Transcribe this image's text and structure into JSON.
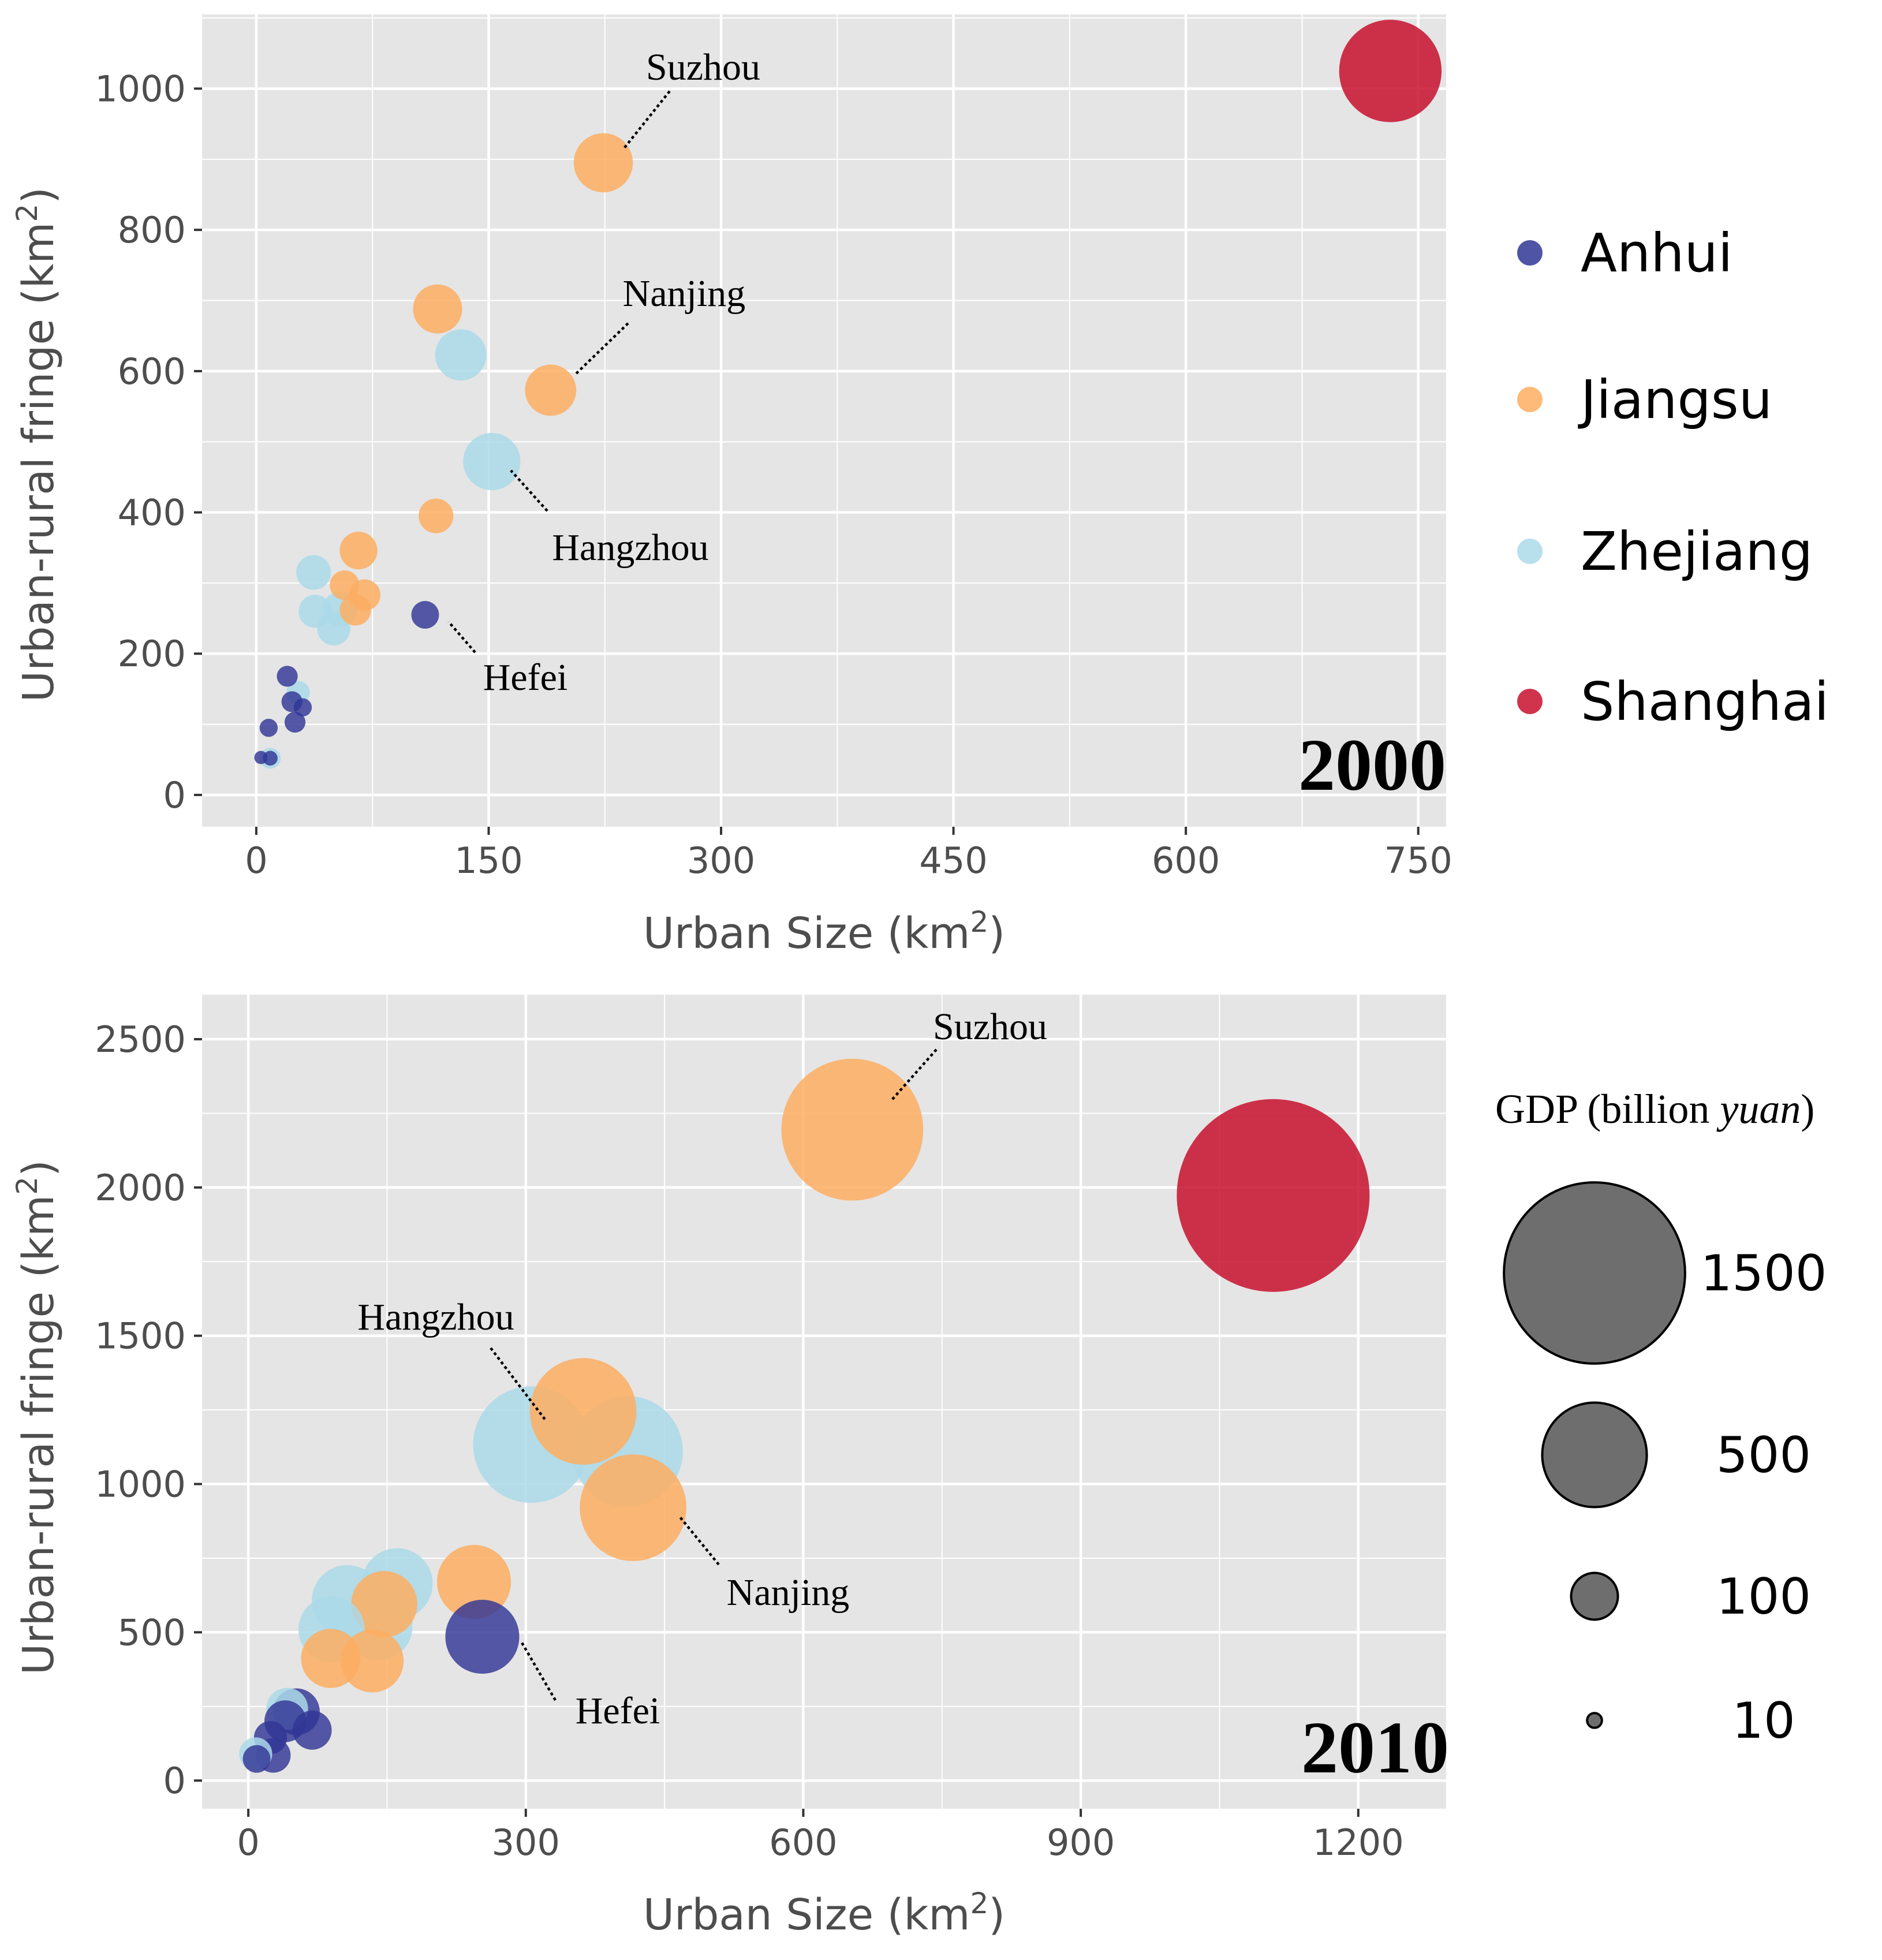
{
  "colors": {
    "Anhui": "#313695",
    "Jiangsu": "#fdae61",
    "Zhejiang": "#abd9e9",
    "Shanghai": "#c8102e",
    "panel_bg": "#e5e5e5",
    "grid": "#ffffff",
    "size_key_fill": "#6e6e6e"
  },
  "legend": {
    "provinces": [
      "Anhui",
      "Jiangsu",
      "Zhejiang",
      "Shanghai"
    ],
    "size_title": "GDP (billion ",
    "size_title_italic": "yuan",
    "size_title_end": ")",
    "size_keys": [
      {
        "value": 1500,
        "label": "1500"
      },
      {
        "value": 500,
        "label": "500"
      },
      {
        "value": 100,
        "label": "100"
      },
      {
        "value": 10,
        "label": "10"
      }
    ]
  },
  "chart_data": [
    {
      "type": "scatter",
      "panel_label": "2000",
      "xlabel": "Urban Size (km",
      "xlabel_sup": "2",
      "xlabel_end": ")",
      "ylabel": "Urban-rural fringe (km",
      "ylabel_sup": "2",
      "ylabel_end": ")",
      "xlim": [
        -35,
        768
      ],
      "ylim": [
        -45,
        1105
      ],
      "xticks": [
        0,
        150,
        300,
        450,
        600,
        750
      ],
      "xtick_labels": [
        "0",
        "150",
        "300",
        "450",
        "600",
        "750"
      ],
      "yticks": [
        0,
        200,
        400,
        600,
        800,
        1000
      ],
      "ytick_labels": [
        "0",
        "200",
        "400",
        "600",
        "800",
        "1000"
      ],
      "points": [
        {
          "province": "Shanghai",
          "x": 732,
          "y": 1025,
          "gdp": 480
        },
        {
          "province": "Jiangsu",
          "x": 224,
          "y": 895,
          "gdp": 160
        },
        {
          "province": "Jiangsu",
          "x": 117,
          "y": 688,
          "gdp": 110
        },
        {
          "province": "Zhejiang",
          "x": 132,
          "y": 623,
          "gdp": 120
        },
        {
          "province": "Jiangsu",
          "x": 190,
          "y": 573,
          "gdp": 120
        },
        {
          "province": "Zhejiang",
          "x": 152,
          "y": 472,
          "gdp": 150
        },
        {
          "province": "Jiangsu",
          "x": 116,
          "y": 395,
          "gdp": 55
        },
        {
          "province": "Jiangsu",
          "x": 66,
          "y": 346,
          "gdp": 65
        },
        {
          "province": "Zhejiang",
          "x": 37,
          "y": 315,
          "gdp": 55
        },
        {
          "province": "Jiangsu",
          "x": 57,
          "y": 297,
          "gdp": 40
        },
        {
          "province": "Jiangsu",
          "x": 70,
          "y": 283,
          "gdp": 45
        },
        {
          "province": "Jiangsu",
          "x": 64,
          "y": 262,
          "gdp": 45
        },
        {
          "province": "Zhejiang",
          "x": 38,
          "y": 260,
          "gdp": 50
        },
        {
          "province": "Zhejiang",
          "x": 54,
          "y": 263,
          "gdp": 55
        },
        {
          "province": "Zhejiang",
          "x": 50,
          "y": 235,
          "gdp": 50
        },
        {
          "province": "Anhui",
          "x": 109,
          "y": 255,
          "gdp": 35
        },
        {
          "province": "Anhui",
          "x": 20,
          "y": 168,
          "gdp": 20
        },
        {
          "province": "Zhejiang",
          "x": 27,
          "y": 145,
          "gdp": 25
        },
        {
          "province": "Anhui",
          "x": 23,
          "y": 132,
          "gdp": 20
        },
        {
          "province": "Anhui",
          "x": 30,
          "y": 124,
          "gdp": 15
        },
        {
          "province": "Anhui",
          "x": 25,
          "y": 103,
          "gdp": 20
        },
        {
          "province": "Anhui",
          "x": 8,
          "y": 95,
          "gdp": 15
        },
        {
          "province": "Zhejiang",
          "x": 9,
          "y": 52,
          "gdp": 20
        },
        {
          "province": "Anhui",
          "x": 3,
          "y": 53,
          "gdp": 8
        },
        {
          "province": "Anhui",
          "x": 9,
          "y": 52,
          "gdp": 10
        }
      ],
      "annotations": [
        {
          "label": "Suzhou",
          "x": 224,
          "y": 895
        },
        {
          "label": "Nanjing",
          "x": 190,
          "y": 573
        },
        {
          "label": "Hangzhou",
          "x": 152,
          "y": 472
        },
        {
          "label": "Hefei",
          "x": 109,
          "y": 255
        }
      ]
    },
    {
      "type": "scatter",
      "panel_label": "2010",
      "xlabel": "Urban Size (km",
      "xlabel_sup": "2",
      "xlabel_end": ")",
      "ylabel": "Urban-rural fringe (km",
      "ylabel_sup": "2",
      "ylabel_end": ")",
      "xlim": [
        -50,
        1295
      ],
      "ylim": [
        -95,
        2650
      ],
      "xticks": [
        0,
        300,
        600,
        900,
        1200
      ],
      "xtick_labels": [
        "0",
        "300",
        "600",
        "900",
        "1200"
      ],
      "yticks": [
        0,
        500,
        1000,
        1500,
        2000,
        2500
      ],
      "ytick_labels": [
        "0",
        "500",
        "1000",
        "1500",
        "2000",
        "2500"
      ],
      "points": [
        {
          "province": "Shanghai",
          "x": 1108,
          "y": 1973,
          "gdp": 1700
        },
        {
          "province": "Jiangsu",
          "x": 653,
          "y": 2195,
          "gdp": 920
        },
        {
          "province": "Jiangsu",
          "x": 362,
          "y": 1245,
          "gdp": 520
        },
        {
          "province": "Zhejiang",
          "x": 410,
          "y": 1110,
          "gdp": 560
        },
        {
          "province": "Zhejiang",
          "x": 306,
          "y": 1133,
          "gdp": 620
        },
        {
          "province": "Jiangsu",
          "x": 416,
          "y": 920,
          "gdp": 520
        },
        {
          "province": "Jiangsu",
          "x": 244,
          "y": 670,
          "gdp": 250
        },
        {
          "province": "Zhejiang",
          "x": 161,
          "y": 664,
          "gdp": 230
        },
        {
          "province": "Jiangsu",
          "x": 147,
          "y": 595,
          "gdp": 200
        },
        {
          "province": "Zhejiang",
          "x": 107,
          "y": 607,
          "gdp": 230
        },
        {
          "province": "Zhejiang",
          "x": 90,
          "y": 510,
          "gdp": 200
        },
        {
          "province": "Zhejiang",
          "x": 141,
          "y": 520,
          "gdp": 210
        },
        {
          "province": "Jiangsu",
          "x": 134,
          "y": 403,
          "gdp": 180
        },
        {
          "province": "Jiangsu",
          "x": 89,
          "y": 412,
          "gdp": 160
        },
        {
          "province": "Anhui",
          "x": 253,
          "y": 485,
          "gdp": 250
        },
        {
          "province": "Zhejiang",
          "x": 42,
          "y": 242,
          "gdp": 80
        },
        {
          "province": "Anhui",
          "x": 52,
          "y": 232,
          "gdp": 100
        },
        {
          "province": "Anhui",
          "x": 40,
          "y": 200,
          "gdp": 80
        },
        {
          "province": "Anhui",
          "x": 69,
          "y": 170,
          "gdp": 70
        },
        {
          "province": "Anhui",
          "x": 24,
          "y": 145,
          "gdp": 50
        },
        {
          "province": "Zhejiang",
          "x": 8,
          "y": 90,
          "gdp": 50
        },
        {
          "province": "Anhui",
          "x": 27,
          "y": 85,
          "gdp": 55
        },
        {
          "province": "Anhui",
          "x": 9,
          "y": 73,
          "gdp": 35
        }
      ],
      "annotations": [
        {
          "label": "Suzhou",
          "x": 653,
          "y": 2195
        },
        {
          "label": "Hangzhou",
          "x": 306,
          "y": 1133
        },
        {
          "label": "Nanjing",
          "x": 416,
          "y": 920
        },
        {
          "label": "Hefei",
          "x": 253,
          "y": 485
        }
      ]
    }
  ]
}
